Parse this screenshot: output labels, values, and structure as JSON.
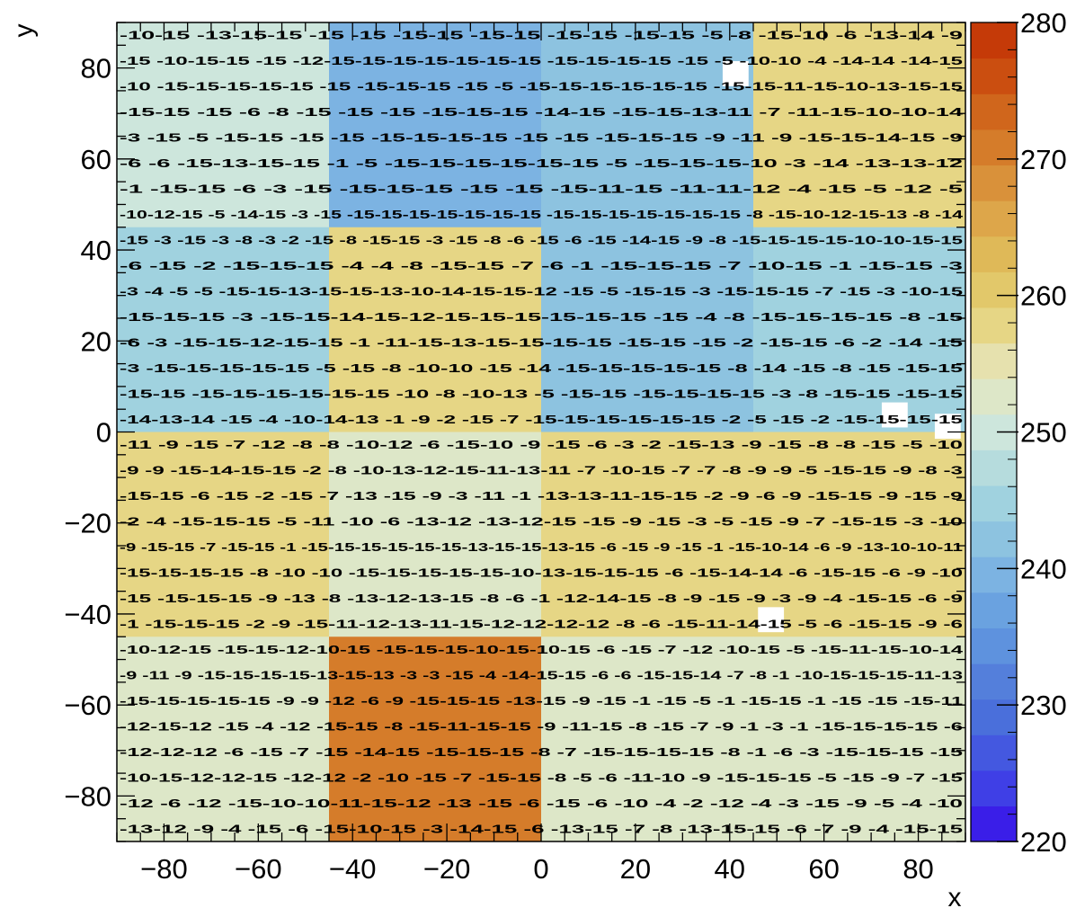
{
  "chart_data": {
    "type": "heatmap",
    "title": "",
    "xlabel": "x",
    "ylabel": "y",
    "xlim": [
      -90,
      90
    ],
    "ylim": [
      -90,
      90
    ],
    "zlim": [
      220,
      280
    ],
    "x_ticks": [
      -80,
      -60,
      -40,
      -20,
      0,
      20,
      40,
      60,
      80
    ],
    "y_ticks": [
      -80,
      -60,
      -40,
      -20,
      0,
      20,
      40,
      60,
      80
    ],
    "x_tick_labels": [
      "−80",
      "−60",
      "−40",
      "−20",
      "0",
      "20",
      "40",
      "60",
      "80"
    ],
    "y_tick_labels": [
      "−80",
      "−60",
      "−40",
      "−20",
      "0",
      "20",
      "40",
      "60",
      "80"
    ],
    "colorbar_ticks": [
      220,
      230,
      240,
      250,
      260,
      270,
      280
    ],
    "colorbar_tick_labels": [
      "220",
      "230",
      "240",
      "250",
      "260",
      "270",
      "280"
    ],
    "palette": [
      "#3a1ee8",
      "#3f3fe6",
      "#4458e0",
      "#4a6fdb",
      "#547fdb",
      "#5e92de",
      "#6aa2e0",
      "#7cb3e2",
      "#8dc3e0",
      "#a0d2df",
      "#b6dcdd",
      "#cde6dc",
      "#dde7c8",
      "#e6e1ae",
      "#e6d685",
      "#e2c86a",
      "#dfb958",
      "#dda64a",
      "#d9913a",
      "#d57c2a",
      "#d0661c",
      "#cb4e10",
      "#c53a08"
    ],
    "blocks": [
      {
        "x": [
          -90,
          -45
        ],
        "y": [
          45,
          90
        ],
        "value": 249
      },
      {
        "x": [
          -45,
          0
        ],
        "y": [
          45,
          90
        ],
        "value": 240
      },
      {
        "x": [
          0,
          45
        ],
        "y": [
          45,
          90
        ],
        "value": 243
      },
      {
        "x": [
          45,
          90
        ],
        "y": [
          45,
          90
        ],
        "value": 258
      },
      {
        "x": [
          -90,
          -45
        ],
        "y": [
          0,
          45
        ],
        "value": 245
      },
      {
        "x": [
          -45,
          0
        ],
        "y": [
          0,
          45
        ],
        "value": 259
      },
      {
        "x": [
          0,
          45
        ],
        "y": [
          0,
          45
        ],
        "value": 243
      },
      {
        "x": [
          45,
          90
        ],
        "y": [
          0,
          45
        ],
        "value": 246
      },
      {
        "x": [
          -90,
          -45
        ],
        "y": [
          -45,
          0
        ],
        "value": 259
      },
      {
        "x": [
          -45,
          0
        ],
        "y": [
          -45,
          0
        ],
        "value": 252
      },
      {
        "x": [
          0,
          45
        ],
        "y": [
          -45,
          0
        ],
        "value": 259
      },
      {
        "x": [
          45,
          90
        ],
        "y": [
          -45,
          0
        ],
        "value": 259
      },
      {
        "x": [
          -90,
          -45
        ],
        "y": [
          -90,
          -45
        ],
        "value": 253
      },
      {
        "x": [
          -45,
          0
        ],
        "y": [
          -90,
          -45
        ],
        "value": 272
      },
      {
        "x": [
          0,
          45
        ],
        "y": [
          -90,
          -45
        ],
        "value": 253
      },
      {
        "x": [
          45,
          90
        ],
        "y": [
          -90,
          -45
        ],
        "value": 253
      }
    ],
    "empty_bins": [
      {
        "x": 41.25,
        "y": 78.75
      },
      {
        "x": 75,
        "y": 3.75
      },
      {
        "x": 86.25,
        "y": 1.25
      },
      {
        "x": 48.75,
        "y": -41.25
      }
    ],
    "text_rows": [
      "-10-15   -13-15-15   -15   -15   -15-15   -15-15   -15-15   -15-15   -5 -8 -15-10 -6 -13-14 -9",
      "-15   -10-15-15   -15 -12-15-15-15-15-15-15-15   -15-15-15-15   -15 -5 -10-10 -4 -14-14   -14-15",
      "-10   -15-15-15-15-15 -15   -15-15-15   -15   -5 -15-15-15-15-15-15   -15-15-11-15-10-13-15-15",
      "-15-15   -15 -6 -8 -15 -15   -15   -15-15-15   -14-15   -15-15-13-11 -7 -11-15-10-10-14",
      "-3 -15 -5 -15-15   -15   -15   -15-15-15-15   -15   -15   -15-15-15 -9 -11 -9 -15-15-14-15 -9",
      "-6   -6 -15-13-15-15 -1 -5 -15-15-15-15-15-15   -5   -15-15-15-10 -3 -14   -13-13-12",
      "-1 -15-15   -6 -3   -15   -15-15-15 -15   -15   -15-11-15   -11-11-12 -4 -15 -5 -12 -5",
      "-10-12-15 -5 -14-15 -3 -15   -15-15-15-15-15-15-15   -15-15-15-15-15-15-15 -8 -15-10-12-15-13 -8 -14",
      "-15 -3 -15 -3 -8 -3 -2 -15 -8   -15-15 -3 -15 -8 -6 -15 -6 -15   -14-15 -9 -8 -15-15-15-15-10-10-15-15",
      "-6 -15 -2   -15-15-15 -4 -4 -8 -15-15 -7 -6   -1 -15-15-15   -7 -10-15   -1   -15-15 -3",
      "-3   -4 -5 -5   -15-15-13-15-15-13-10-14-15-15-12   -15   -5 -15-15 -3 -15-15-15 -7 -15 -3 -10-15",
      "-15-15-15   -3   -15-15-14-15-12-15-15-15-15-15-15   -15 -4 -8 -15-15-15-15 -8   -15",
      "-6 -3 -15-15-12-15-15   -1 -11-15-13-15-15-15-15   -15-15   -15   -2 -15-15 -6 -2 -14   -15",
      "-3 -15-15-15-15-15 -5 -15 -8 -10-10   -15   -14   -15-15-15-15-15   -8 -14   -15 -8 -15   -15-15",
      "-15-15   -15-15-15-15-15-15   -10   -8 -10-13 -5 -15-15   -15-15-15-15   -3 -8   -15-15   -15-15",
      "-14-13-14   -15   -4   -10-14-13 -1 -9 -2 -15 -7 -15-15-15-15-15-15   -2 -5 -15 -2 -15-15-15-15",
      "-11 -9   -15   -7   -12 -8 -8 -10-12 -6 -15-10 -9 -15 -6   -3 -2 -15-13 -9 -15   -8 -8 -15 -5 -10",
      "-9   -9 -15-14-15-15 -2 -8 -10-13-12-15-11-13-11 -7 -10-15 -7   -7 -8 -9 -9 -5 -15-15 -9 -8   -3",
      "-15-15 -6   -15 -2 -15 -7 -13   -15 -9 -3 -11 -1 -13-13-11-15-15 -2 -9 -6 -9 -15-15 -9 -15 -9",
      "-2   -4 -15-15-15 -5 -11   -10 -6 -13-12   -13-12-15   -15 -9 -15 -3 -5 -15 -9 -7 -15-15 -3 -10",
      "-9 -15-15 -7 -15-15 -1 -15-15-15-15-15-15-13-15-15-13-15 -6 -15 -9 -15 -1 -15-10-14 -6 -9 -13-10-10-11",
      "-15-15-15-15 -8 -10   -10   -15-15-15-15-15-10-13-15-15-15 -6 -15-14-14 -6   -15-15 -6   -9 -10",
      "-15   -15-15-15 -9 -13 -8 -13-12-13-15 -8 -6 -1 -12-14-15   -8 -9 -15 -9 -3 -9 -4   -15-15 -6 -9",
      "-1 -15-15-15 -2 -9 -15-11-12-13-11-15-12-12-12-12 -8   -6 -15-11-14-15   -5 -6 -15-15   -9 -6",
      "-10-12-15   -15-15-12-10-15   -15-15-15-10-15-10-15 -6 -15 -7 -12   -10-15 -5 -15-11-15-10-14",
      "-9 -11 -9 -15-15-15-15-13-15-13 -3 -3 -15 -4 -14-15-15 -6 -6 -15-15-14 -7 -8   -1 -10-15-15-15-11-13",
      "-15-15-15-15-15 -9 -9 -12   -6 -9 -15-15-15   -13-15 -9 -15 -1 -15 -5 -1 -15-15 -1 -15   -15   -15-11",
      "-12-15-12   -15 -4 -12   -15-15 -8 -15-11-15-15 -9 -11-15 -8 -15 -7 -9   -1 -3 -1 -15-15-15-15 -6",
      "-12-12-12 -6 -15   -7 -15   -14-15   -15-15-15 -8 -7 -15-15-15-15 -8 -1 -6 -3 -15-15-15   -15",
      "-10-15-12-12-15   -12-12 -2   -10   -15   -7 -15-15 -8 -5 -6 -11-10 -9 -15-15-15 -5   -15 -9 -7 -15",
      "-12 -6 -12   -15-10-10-11-15-12   -13   -15 -6 -15   -6 -10 -4 -2 -12 -4   -3 -15 -9 -5 -4 -10",
      "-13-12 -9 -4 -15 -6 -15-10-15   -3   -14-15   -6 -13-15 -7 -8 -13-15-15 -6 -7 -9   -4 -15-15"
    ]
  }
}
